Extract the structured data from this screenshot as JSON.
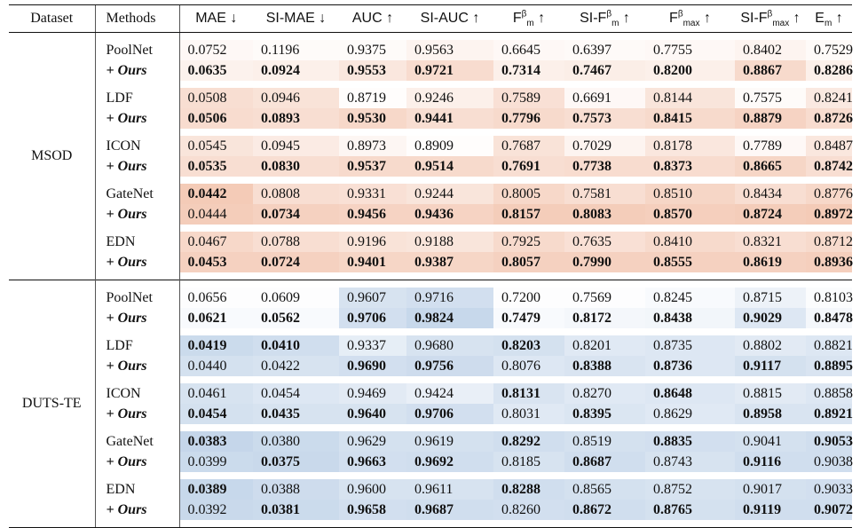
{
  "header": {
    "dataset": "Dataset",
    "methods": "Methods",
    "metrics": [
      {
        "base": "MAE",
        "sup": "",
        "sub": "",
        "arrow": "↓"
      },
      {
        "base": "SI-MAE",
        "sup": "",
        "sub": "",
        "arrow": "↓"
      },
      {
        "base": "AUC",
        "sup": "",
        "sub": "",
        "arrow": "↑"
      },
      {
        "base": "SI-AUC",
        "sup": "",
        "sub": "",
        "arrow": "↑"
      },
      {
        "base": "F",
        "sup": "β",
        "sub": "m",
        "arrow": "↑"
      },
      {
        "base": "SI-F",
        "sup": "β",
        "sub": "m",
        "arrow": "↑"
      },
      {
        "base": "F",
        "sup": "β",
        "sub": "max",
        "arrow": "↑"
      },
      {
        "base": "SI-F",
        "sup": "β",
        "sub": "max",
        "arrow": "↑"
      },
      {
        "base": "E",
        "sup": "",
        "sub": "m",
        "arrow": "↑"
      }
    ]
  },
  "sections": [
    {
      "dataset": "MSOD",
      "color": "#e8926a",
      "groups": [
        {
          "rows": [
            {
              "method": "PoolNet",
              "ours": false,
              "values": [
                "0.0752",
                "0.1196",
                "0.9375",
                "0.9563",
                "0.6645",
                "0.6397",
                "0.7755",
                "0.8402",
                "0.7529"
              ],
              "bold": [
                false,
                false,
                false,
                false,
                false,
                false,
                false,
                false,
                false
              ],
              "shade": [
                0.06,
                0.04,
                0.04,
                0.1,
                0.06,
                0.05,
                0.06,
                0.1,
                0.05
              ]
            },
            {
              "method": "+ Ours",
              "ours": true,
              "values": [
                "0.0635",
                "0.0924",
                "0.9553",
                "0.9721",
                "0.7314",
                "0.7467",
                "0.8200",
                "0.8867",
                "0.8286"
              ],
              "bold": [
                true,
                true,
                true,
                true,
                true,
                true,
                true,
                true,
                true
              ],
              "shade": [
                0.12,
                0.14,
                0.22,
                0.32,
                0.14,
                0.16,
                0.14,
                0.34,
                0.14
              ]
            }
          ]
        },
        {
          "rows": [
            {
              "method": "LDF",
              "ours": false,
              "values": [
                "0.0508",
                "0.0946",
                "0.8719",
                "0.9246",
                "0.7589",
                "0.6691",
                "0.8144",
                "0.7575",
                "0.8241"
              ],
              "bold": [
                false,
                false,
                false,
                false,
                false,
                false,
                false,
                false,
                false
              ],
              "shade": [
                0.3,
                0.26,
                0.02,
                0.14,
                0.28,
                0.06,
                0.24,
                0.04,
                0.2
              ]
            },
            {
              "method": "+ Ours",
              "ours": true,
              "values": [
                "0.0506",
                "0.0893",
                "0.9530",
                "0.9441",
                "0.7796",
                "0.7573",
                "0.8415",
                "0.8879",
                "0.8726"
              ],
              "bold": [
                true,
                true,
                true,
                true,
                true,
                true,
                true,
                true,
                true
              ],
              "shade": [
                0.32,
                0.3,
                0.36,
                0.3,
                0.34,
                0.3,
                0.34,
                0.4,
                0.32
              ]
            }
          ]
        },
        {
          "rows": [
            {
              "method": "ICON",
              "ours": false,
              "values": [
                "0.0545",
                "0.0945",
                "0.8973",
                "0.8909",
                "0.7687",
                "0.7029",
                "0.8178",
                "0.7789",
                "0.8487"
              ],
              "bold": [
                false,
                false,
                false,
                false,
                false,
                false,
                false,
                false,
                false
              ],
              "shade": [
                0.24,
                0.18,
                0.08,
                0.02,
                0.26,
                0.1,
                0.22,
                0.06,
                0.22
              ]
            },
            {
              "method": "+ Ours",
              "ours": true,
              "values": [
                "0.0535",
                "0.0830",
                "0.9537",
                "0.9514",
                "0.7691",
                "0.7738",
                "0.8373",
                "0.8665",
                "0.8742"
              ],
              "bold": [
                true,
                true,
                true,
                true,
                true,
                true,
                true,
                true,
                true
              ],
              "shade": [
                0.3,
                0.3,
                0.34,
                0.34,
                0.3,
                0.32,
                0.32,
                0.38,
                0.3
              ]
            }
          ]
        },
        {
          "rows": [
            {
              "method": "GateNet",
              "ours": false,
              "values": [
                "0.0442",
                "0.0808",
                "0.9331",
                "0.9244",
                "0.8005",
                "0.7581",
                "0.8510",
                "0.8434",
                "0.8776"
              ],
              "bold": [
                true,
                false,
                false,
                false,
                false,
                false,
                false,
                false,
                false
              ],
              "shade": [
                0.48,
                0.3,
                0.28,
                0.24,
                0.36,
                0.3,
                0.38,
                0.3,
                0.36
              ]
            },
            {
              "method": "+ Ours",
              "ours": true,
              "values": [
                "0.0444",
                "0.0734",
                "0.9456",
                "0.9436",
                "0.8157",
                "0.8083",
                "0.8570",
                "0.8724",
                "0.8972"
              ],
              "bold": [
                false,
                true,
                true,
                true,
                true,
                true,
                true,
                true,
                true
              ],
              "shade": [
                0.46,
                0.42,
                0.4,
                0.4,
                0.46,
                0.46,
                0.44,
                0.46,
                0.48
              ]
            }
          ]
        },
        {
          "rows": [
            {
              "method": "EDN",
              "ours": false,
              "values": [
                "0.0467",
                "0.0788",
                "0.9196",
                "0.9188",
                "0.7925",
                "0.7635",
                "0.8410",
                "0.8321",
                "0.8712"
              ],
              "bold": [
                false,
                false,
                false,
                false,
                false,
                false,
                false,
                false,
                false
              ],
              "shade": [
                0.36,
                0.3,
                0.26,
                0.24,
                0.34,
                0.28,
                0.34,
                0.3,
                0.34
              ]
            },
            {
              "method": "+ Ours",
              "ours": true,
              "values": [
                "0.0453",
                "0.0724",
                "0.9401",
                "0.9387",
                "0.8057",
                "0.7990",
                "0.8555",
                "0.8619",
                "0.8936"
              ],
              "bold": [
                true,
                true,
                true,
                true,
                true,
                true,
                true,
                true,
                true
              ],
              "shade": [
                0.42,
                0.42,
                0.38,
                0.38,
                0.42,
                0.42,
                0.42,
                0.42,
                0.44
              ]
            }
          ]
        }
      ]
    },
    {
      "dataset": "DUTS-TE",
      "color": "#8fb0d6",
      "groups": [
        {
          "rows": [
            {
              "method": "PoolNet",
              "ours": false,
              "values": [
                "0.0656",
                "0.0609",
                "0.9607",
                "0.9716",
                "0.7200",
                "0.7569",
                "0.8245",
                "0.8715",
                "0.8103"
              ],
              "bold": [
                false,
                false,
                false,
                false,
                false,
                false,
                false,
                false,
                false
              ],
              "shade": [
                0.02,
                0.02,
                0.36,
                0.4,
                0.02,
                0.02,
                0.06,
                0.16,
                0.04
              ]
            },
            {
              "method": "+ Ours",
              "ours": true,
              "values": [
                "0.0621",
                "0.0562",
                "0.9706",
                "0.9824",
                "0.7479",
                "0.8172",
                "0.8438",
                "0.9029",
                "0.8478"
              ],
              "bold": [
                true,
                true,
                true,
                true,
                true,
                true,
                true,
                true,
                true
              ],
              "shade": [
                0.06,
                0.06,
                0.4,
                0.5,
                0.06,
                0.1,
                0.12,
                0.3,
                0.1
              ]
            }
          ]
        },
        {
          "rows": [
            {
              "method": "LDF",
              "ours": false,
              "values": [
                "0.0419",
                "0.0410",
                "0.9337",
                "0.9680",
                "0.8203",
                "0.8201",
                "0.8735",
                "0.8802",
                "0.8821"
              ],
              "bold": [
                true,
                true,
                false,
                false,
                true,
                false,
                false,
                false,
                false
              ],
              "shade": [
                0.46,
                0.42,
                0.22,
                0.36,
                0.38,
                0.28,
                0.3,
                0.26,
                0.3
              ]
            },
            {
              "method": "+ Ours",
              "ours": true,
              "values": [
                "0.0440",
                "0.0422",
                "0.9690",
                "0.9756",
                "0.8076",
                "0.8388",
                "0.8736",
                "0.9117",
                "0.8895"
              ],
              "bold": [
                false,
                false,
                true,
                true,
                false,
                true,
                true,
                true,
                true
              ],
              "shade": [
                0.38,
                0.36,
                0.4,
                0.44,
                0.3,
                0.34,
                0.3,
                0.38,
                0.34
              ]
            }
          ]
        },
        {
          "rows": [
            {
              "method": "ICON",
              "ours": false,
              "values": [
                "0.0461",
                "0.0454",
                "0.9469",
                "0.9424",
                "0.8131",
                "0.8270",
                "0.8648",
                "0.8815",
                "0.8858"
              ],
              "bold": [
                false,
                false,
                false,
                false,
                true,
                false,
                true,
                false,
                false
              ],
              "shade": [
                0.36,
                0.3,
                0.26,
                0.2,
                0.34,
                0.28,
                0.3,
                0.26,
                0.3
              ]
            },
            {
              "method": "+ Ours",
              "ours": true,
              "values": [
                "0.0454",
                "0.0435",
                "0.9640",
                "0.9706",
                "0.8031",
                "0.8395",
                "0.8629",
                "0.8958",
                "0.8921"
              ],
              "bold": [
                true,
                true,
                true,
                true,
                false,
                true,
                false,
                true,
                true
              ],
              "shade": [
                0.38,
                0.36,
                0.36,
                0.4,
                0.28,
                0.32,
                0.28,
                0.34,
                0.34
              ]
            }
          ]
        },
        {
          "rows": [
            {
              "method": "GateNet",
              "ours": false,
              "values": [
                "0.0383",
                "0.0380",
                "0.9629",
                "0.9619",
                "0.8292",
                "0.8519",
                "0.8835",
                "0.9041",
                "0.9053"
              ],
              "bold": [
                true,
                false,
                false,
                false,
                true,
                false,
                true,
                false,
                true
              ],
              "shade": [
                0.52,
                0.46,
                0.38,
                0.38,
                0.42,
                0.38,
                0.4,
                0.38,
                0.42
              ]
            },
            {
              "method": "+ Ours",
              "ours": true,
              "values": [
                "0.0399",
                "0.0375",
                "0.9663",
                "0.9692",
                "0.8185",
                "0.8687",
                "0.8743",
                "0.9116",
                "0.9038"
              ],
              "bold": [
                false,
                true,
                true,
                true,
                false,
                true,
                false,
                true,
                false
              ],
              "shade": [
                0.46,
                0.48,
                0.4,
                0.42,
                0.36,
                0.42,
                0.36,
                0.42,
                0.42
              ]
            }
          ]
        },
        {
          "rows": [
            {
              "method": "EDN",
              "ours": false,
              "values": [
                "0.0389",
                "0.0388",
                "0.9600",
                "0.9611",
                "0.8288",
                "0.8565",
                "0.8752",
                "0.9017",
                "0.9033"
              ],
              "bold": [
                true,
                false,
                false,
                false,
                true,
                false,
                false,
                false,
                false
              ],
              "shade": [
                0.5,
                0.44,
                0.36,
                0.36,
                0.42,
                0.38,
                0.36,
                0.38,
                0.4
              ]
            },
            {
              "method": "+ Ours",
              "ours": true,
              "values": [
                "0.0392",
                "0.0381",
                "0.9658",
                "0.9687",
                "0.8260",
                "0.8672",
                "0.8765",
                "0.9119",
                "0.9072"
              ],
              "bold": [
                false,
                true,
                true,
                true,
                false,
                true,
                true,
                true,
                true
              ],
              "shade": [
                0.48,
                0.46,
                0.4,
                0.42,
                0.4,
                0.42,
                0.38,
                0.42,
                0.42
              ]
            }
          ]
        }
      ]
    }
  ]
}
